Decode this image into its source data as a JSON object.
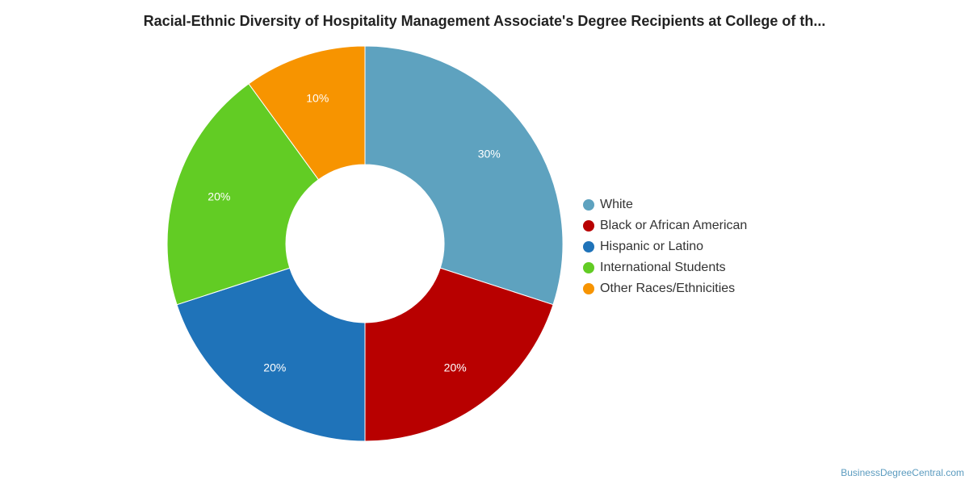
{
  "chart_data": {
    "type": "pie",
    "title": "Racial-Ethnic Diversity of Hospitality Management Associate's Degree Recipients at College of th...",
    "legend_placement": "right",
    "slices": [
      {
        "name": "White",
        "value": 30,
        "label": "30%",
        "color": "#5ea2bf"
      },
      {
        "name": "Black or African American",
        "value": 20,
        "label": "20%",
        "color": "#b80000"
      },
      {
        "name": "Hispanic or Latino",
        "value": 20,
        "label": "20%",
        "color": "#1f73b9"
      },
      {
        "name": "International Students",
        "value": 20,
        "label": "20%",
        "color": "#62cc24"
      },
      {
        "name": "Other Races/Ethnicities",
        "value": 10,
        "label": "10%",
        "color": "#f79400"
      }
    ]
  },
  "footer": {
    "credit": "BusinessDegreeCentral.com"
  }
}
